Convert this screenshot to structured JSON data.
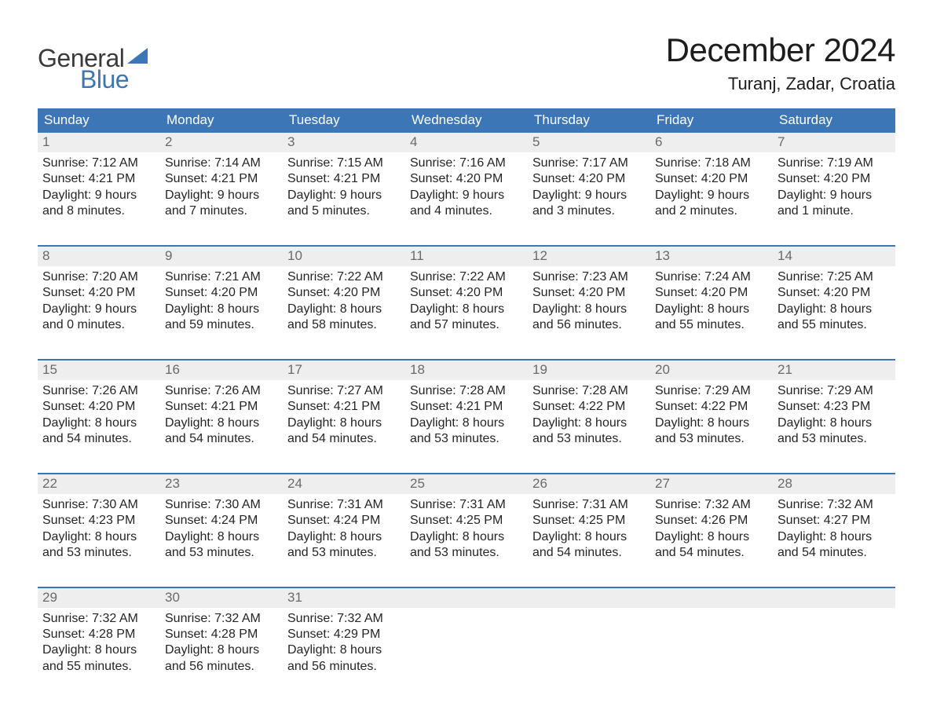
{
  "logo": {
    "line1": "General",
    "line2": "Blue",
    "accent": "#3d76b6"
  },
  "title": "December 2024",
  "location": "Turanj, Zadar, Croatia",
  "day_names": [
    "Sunday",
    "Monday",
    "Tuesday",
    "Wednesday",
    "Thursday",
    "Friday",
    "Saturday"
  ],
  "colors": {
    "header_bg": "#3d76b6",
    "header_text": "#ffffff",
    "daynum_bg": "#eeeeee",
    "daynum_text": "#6a6a6a",
    "week_divider": "#3d76b6",
    "body_text": "#252525",
    "page_bg": "#ffffff"
  },
  "typography": {
    "title_fontsize": 42,
    "location_fontsize": 22,
    "dayheader_fontsize": 17,
    "cell_fontsize": 16
  },
  "weeks": [
    [
      {
        "num": "1",
        "sunrise": "7:12 AM",
        "sunset": "4:21 PM",
        "daylight": "9 hours and 8 minutes."
      },
      {
        "num": "2",
        "sunrise": "7:14 AM",
        "sunset": "4:21 PM",
        "daylight": "9 hours and 7 minutes."
      },
      {
        "num": "3",
        "sunrise": "7:15 AM",
        "sunset": "4:21 PM",
        "daylight": "9 hours and 5 minutes."
      },
      {
        "num": "4",
        "sunrise": "7:16 AM",
        "sunset": "4:20 PM",
        "daylight": "9 hours and 4 minutes."
      },
      {
        "num": "5",
        "sunrise": "7:17 AM",
        "sunset": "4:20 PM",
        "daylight": "9 hours and 3 minutes."
      },
      {
        "num": "6",
        "sunrise": "7:18 AM",
        "sunset": "4:20 PM",
        "daylight": "9 hours and 2 minutes."
      },
      {
        "num": "7",
        "sunrise": "7:19 AM",
        "sunset": "4:20 PM",
        "daylight": "9 hours and 1 minute."
      }
    ],
    [
      {
        "num": "8",
        "sunrise": "7:20 AM",
        "sunset": "4:20 PM",
        "daylight": "9 hours and 0 minutes."
      },
      {
        "num": "9",
        "sunrise": "7:21 AM",
        "sunset": "4:20 PM",
        "daylight": "8 hours and 59 minutes."
      },
      {
        "num": "10",
        "sunrise": "7:22 AM",
        "sunset": "4:20 PM",
        "daylight": "8 hours and 58 minutes."
      },
      {
        "num": "11",
        "sunrise": "7:22 AM",
        "sunset": "4:20 PM",
        "daylight": "8 hours and 57 minutes."
      },
      {
        "num": "12",
        "sunrise": "7:23 AM",
        "sunset": "4:20 PM",
        "daylight": "8 hours and 56 minutes."
      },
      {
        "num": "13",
        "sunrise": "7:24 AM",
        "sunset": "4:20 PM",
        "daylight": "8 hours and 55 minutes."
      },
      {
        "num": "14",
        "sunrise": "7:25 AM",
        "sunset": "4:20 PM",
        "daylight": "8 hours and 55 minutes."
      }
    ],
    [
      {
        "num": "15",
        "sunrise": "7:26 AM",
        "sunset": "4:20 PM",
        "daylight": "8 hours and 54 minutes."
      },
      {
        "num": "16",
        "sunrise": "7:26 AM",
        "sunset": "4:21 PM",
        "daylight": "8 hours and 54 minutes."
      },
      {
        "num": "17",
        "sunrise": "7:27 AM",
        "sunset": "4:21 PM",
        "daylight": "8 hours and 54 minutes."
      },
      {
        "num": "18",
        "sunrise": "7:28 AM",
        "sunset": "4:21 PM",
        "daylight": "8 hours and 53 minutes."
      },
      {
        "num": "19",
        "sunrise": "7:28 AM",
        "sunset": "4:22 PM",
        "daylight": "8 hours and 53 minutes."
      },
      {
        "num": "20",
        "sunrise": "7:29 AM",
        "sunset": "4:22 PM",
        "daylight": "8 hours and 53 minutes."
      },
      {
        "num": "21",
        "sunrise": "7:29 AM",
        "sunset": "4:23 PM",
        "daylight": "8 hours and 53 minutes."
      }
    ],
    [
      {
        "num": "22",
        "sunrise": "7:30 AM",
        "sunset": "4:23 PM",
        "daylight": "8 hours and 53 minutes."
      },
      {
        "num": "23",
        "sunrise": "7:30 AM",
        "sunset": "4:24 PM",
        "daylight": "8 hours and 53 minutes."
      },
      {
        "num": "24",
        "sunrise": "7:31 AM",
        "sunset": "4:24 PM",
        "daylight": "8 hours and 53 minutes."
      },
      {
        "num": "25",
        "sunrise": "7:31 AM",
        "sunset": "4:25 PM",
        "daylight": "8 hours and 53 minutes."
      },
      {
        "num": "26",
        "sunrise": "7:31 AM",
        "sunset": "4:25 PM",
        "daylight": "8 hours and 54 minutes."
      },
      {
        "num": "27",
        "sunrise": "7:32 AM",
        "sunset": "4:26 PM",
        "daylight": "8 hours and 54 minutes."
      },
      {
        "num": "28",
        "sunrise": "7:32 AM",
        "sunset": "4:27 PM",
        "daylight": "8 hours and 54 minutes."
      }
    ],
    [
      {
        "num": "29",
        "sunrise": "7:32 AM",
        "sunset": "4:28 PM",
        "daylight": "8 hours and 55 minutes."
      },
      {
        "num": "30",
        "sunrise": "7:32 AM",
        "sunset": "4:28 PM",
        "daylight": "8 hours and 56 minutes."
      },
      {
        "num": "31",
        "sunrise": "7:32 AM",
        "sunset": "4:29 PM",
        "daylight": "8 hours and 56 minutes."
      },
      {
        "num": "",
        "sunrise": "",
        "sunset": "",
        "daylight": ""
      },
      {
        "num": "",
        "sunrise": "",
        "sunset": "",
        "daylight": ""
      },
      {
        "num": "",
        "sunrise": "",
        "sunset": "",
        "daylight": ""
      },
      {
        "num": "",
        "sunrise": "",
        "sunset": "",
        "daylight": ""
      }
    ]
  ],
  "labels": {
    "sunrise": "Sunrise:",
    "sunset": "Sunset:",
    "daylight": "Daylight:"
  }
}
